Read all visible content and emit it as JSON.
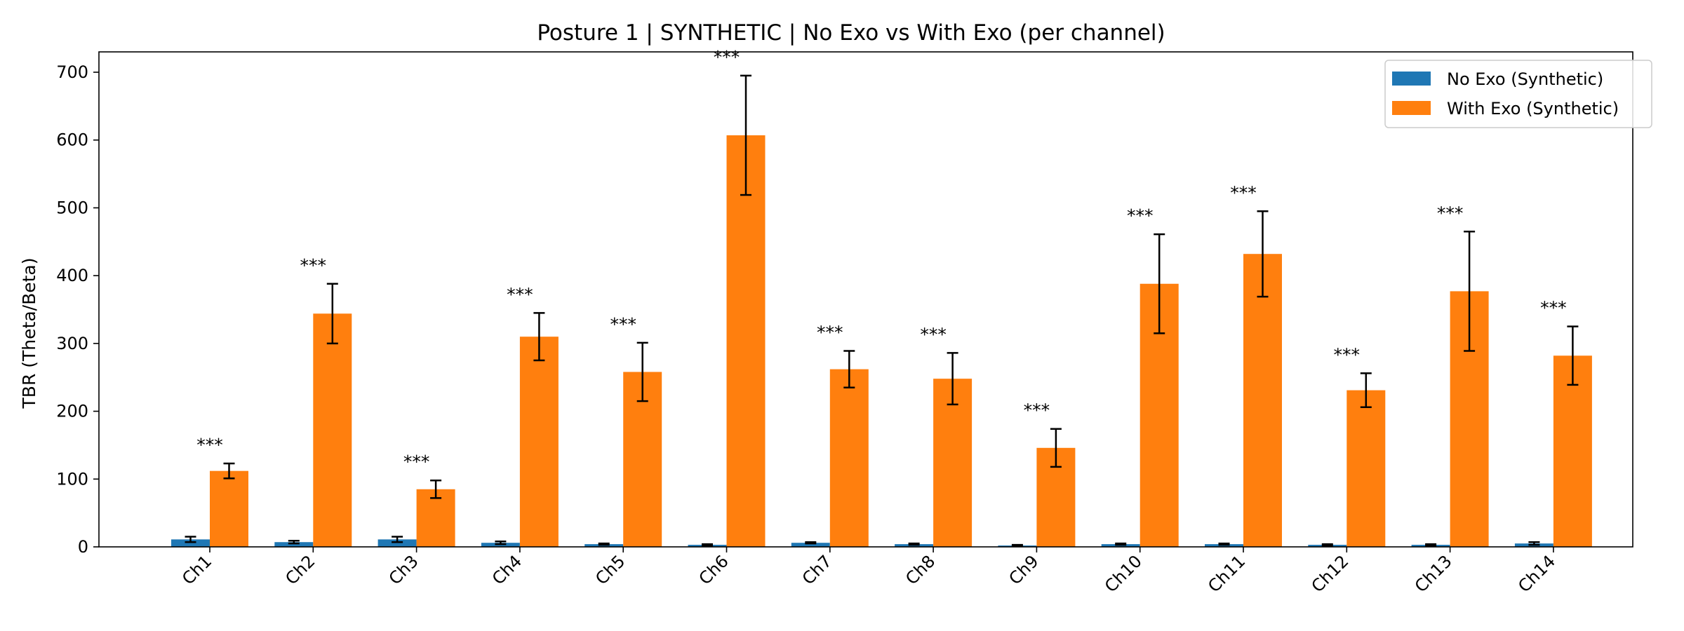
{
  "chart_data": {
    "type": "bar",
    "title": "Posture 1 | SYNTHETIC | No Exo vs With Exo (per channel)",
    "xlabel": "",
    "ylabel": "TBR (Theta/Beta)",
    "ylim": [
      0,
      730
    ],
    "yticks": [
      0,
      100,
      200,
      300,
      400,
      500,
      600,
      700
    ],
    "categories": [
      "Ch1",
      "Ch2",
      "Ch3",
      "Ch4",
      "Ch5",
      "Ch6",
      "Ch7",
      "Ch8",
      "Ch9",
      "Ch10",
      "Ch11",
      "Ch12",
      "Ch13",
      "Ch14"
    ],
    "series": [
      {
        "name": "No Exo (Synthetic)",
        "color": "#1f77b4",
        "values": [
          11,
          7,
          11,
          6,
          4,
          3,
          6,
          4,
          2,
          4,
          4,
          3,
          3,
          5
        ],
        "errors": [
          4,
          2,
          4,
          2,
          1,
          1,
          1,
          1,
          1,
          1,
          1,
          1,
          1,
          2
        ]
      },
      {
        "name": "With Exo (Synthetic)",
        "color": "#ff7f0e",
        "values": [
          112,
          344,
          85,
          310,
          258,
          607,
          262,
          248,
          146,
          388,
          432,
          231,
          377,
          282
        ],
        "errors": [
          11,
          44,
          13,
          35,
          43,
          88,
          27,
          38,
          28,
          73,
          63,
          25,
          88,
          43
        ]
      }
    ],
    "annotations": [
      "***",
      "***",
      "***",
      "***",
      "***",
      "***",
      "***",
      "***",
      "***",
      "***",
      "***",
      "***",
      "***",
      "***"
    ],
    "legend": "top-right",
    "grid": false
  }
}
